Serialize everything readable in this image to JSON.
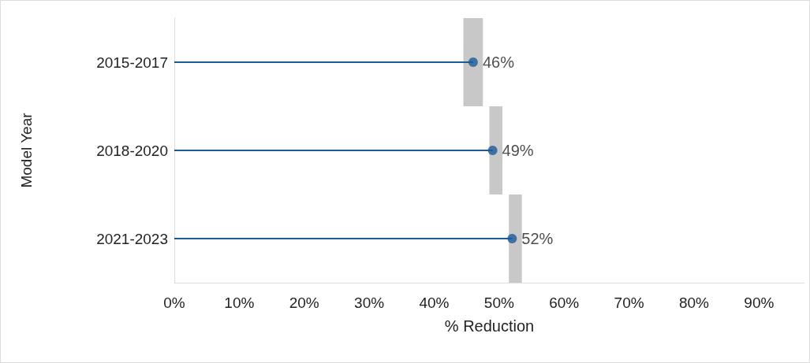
{
  "chart_data": {
    "type": "lollipop",
    "orientation": "horizontal",
    "xlabel": "% Reduction",
    "ylabel": "Model Year",
    "categories": [
      "2015-2017",
      "2018-2020",
      "2021-2023"
    ],
    "series": [
      {
        "type": "bar",
        "color": "#c8c8c8",
        "values": [
          3,
          2,
          2
        ],
        "base": [
          44.5,
          48.5,
          51.5
        ]
      },
      {
        "color": "#1c5a9a",
        "values": [
          46,
          49,
          52
        ],
        "value_labels": [
          "46%",
          "49%",
          "52%"
        ]
      }
    ],
    "xlim": [
      0,
      97
    ],
    "xticks": [
      {
        "value": 0,
        "label": "0%"
      },
      {
        "value": 10,
        "label": "10%"
      },
      {
        "value": 20,
        "label": "20%"
      },
      {
        "value": 30,
        "label": "30%"
      },
      {
        "value": 40,
        "label": "40%"
      },
      {
        "value": 50,
        "label": "50%"
      },
      {
        "value": 60,
        "label": "60%"
      },
      {
        "value": 70,
        "label": "70%"
      },
      {
        "value": 80,
        "label": "80%"
      },
      {
        "value": 90,
        "label": "90%"
      }
    ],
    "marker": "circle",
    "grid": false
  }
}
